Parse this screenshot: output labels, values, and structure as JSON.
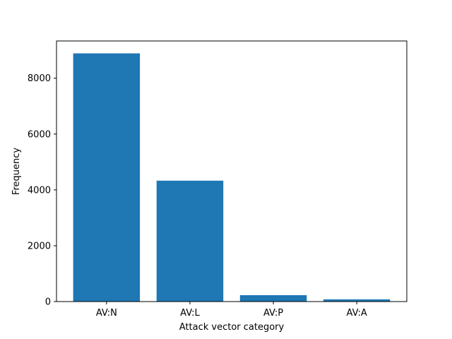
{
  "chart_data": {
    "type": "bar",
    "title": "",
    "xlabel": "Attack vector category",
    "ylabel": "Frequency",
    "categories": [
      "AV:N",
      "AV:L",
      "AV:P",
      "AV:A"
    ],
    "values": [
      8890,
      4330,
      230,
      80
    ],
    "ylim": [
      0,
      9334
    ],
    "yticks": [
      0,
      2000,
      4000,
      6000,
      8000
    ],
    "ytick_labels": [
      "0",
      "2000",
      "4000",
      "6000",
      "8000"
    ],
    "bar_color": "#1f77b4",
    "grid": false,
    "legend": "none"
  }
}
